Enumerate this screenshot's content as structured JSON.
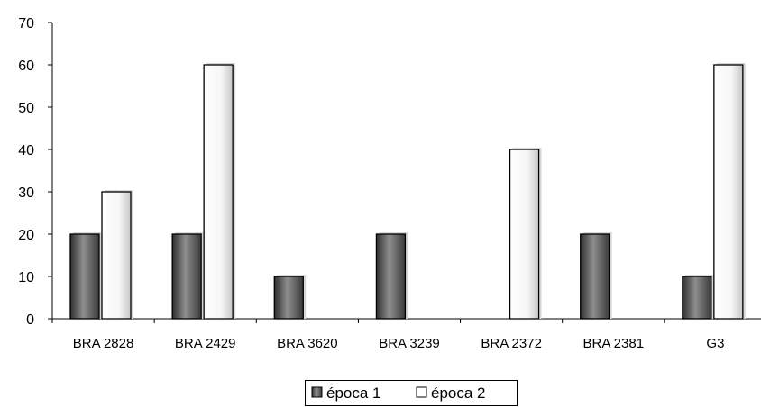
{
  "chart_data": {
    "type": "bar",
    "title": "",
    "xlabel": "",
    "ylabel": "",
    "ylim": [
      0,
      70
    ],
    "yticks": [
      0,
      10,
      20,
      30,
      40,
      50,
      60,
      70
    ],
    "grid": false,
    "legend_position": "bottom",
    "categories": [
      "BRA 2828",
      "BRA 2429",
      "BRA 3620",
      "BRA 3239",
      "BRA 2372",
      "BRA 2381",
      "G3"
    ],
    "series": [
      {
        "name": "época 1",
        "values": [
          20,
          20,
          10,
          20,
          null,
          20,
          10
        ]
      },
      {
        "name": "época 2",
        "values": [
          30,
          60,
          null,
          null,
          40,
          null,
          60
        ]
      }
    ]
  }
}
